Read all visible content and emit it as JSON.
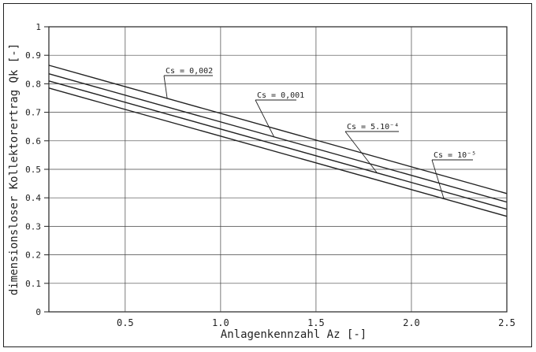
{
  "chart_data": {
    "type": "line",
    "xlabel": "Anlagenkennzahl Az [-]",
    "ylabel": "dimensionsloser Kollektorertrag Qk [-]",
    "xlim": [
      0.1,
      2.5
    ],
    "ylim": [
      0,
      1
    ],
    "x_ticks": [
      "0.5",
      "1.0",
      "1.5",
      "2.0",
      "2.5"
    ],
    "y_ticks": [
      "0",
      "0.1",
      "0.2",
      "0.3",
      "0.4",
      "0.5",
      "0.6",
      "0.7",
      "0.8",
      "0.9",
      "1"
    ],
    "grid": true,
    "series": [
      {
        "name": "Cs = 0,002",
        "x": [
          0.1,
          2.5
        ],
        "y": [
          0.865,
          0.415
        ],
        "label_x": 0.72,
        "label_y": 0.83
      },
      {
        "name": "Cs = 0,001",
        "x": [
          0.1,
          2.5
        ],
        "y": [
          0.835,
          0.385
        ],
        "label_x": 1.28,
        "label_y": 0.73
      },
      {
        "name": "Cs = 5.10⁻⁴",
        "x": [
          0.1,
          2.5
        ],
        "y": [
          0.81,
          0.36
        ],
        "label_x": 1.82,
        "label_y": 0.6
      },
      {
        "name": "Cs = 10⁻⁵",
        "x": [
          0.1,
          2.5
        ],
        "y": [
          0.785,
          0.335
        ],
        "label_x": 2.17,
        "label_y": 0.48
      }
    ]
  }
}
